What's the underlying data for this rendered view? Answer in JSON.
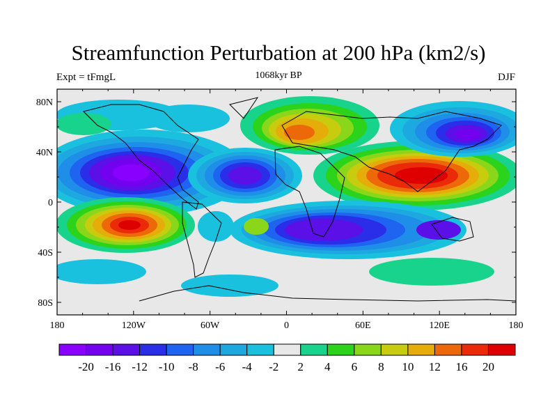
{
  "title": "Streamfunction Perturbation at 200 hPa (km2/s)",
  "left_label": "Expt = tFmgL",
  "center_label": "1068kyr BP",
  "right_label": "DJF",
  "lon_ticks": [
    "180",
    "120W",
    "60W",
    "0",
    "60E",
    "120E",
    "180"
  ],
  "lat_ticks": [
    "80N",
    "40N",
    "0",
    "40S",
    "80S"
  ],
  "colorbar": {
    "labels": [
      "-20",
      "-16",
      "-12",
      "-10",
      "-8",
      "-6",
      "-4",
      "-2",
      "2",
      "4",
      "6",
      "8",
      "10",
      "12",
      "16",
      "20"
    ],
    "colors": [
      "#8a00ff",
      "#7400f0",
      "#5a10e6",
      "#2a2ee8",
      "#1e64f0",
      "#1e8ee8",
      "#1ea8e0",
      "#19c1de",
      "#e8e8e8",
      "#17d38b",
      "#2bd31a",
      "#8ad61a",
      "#c8cc0e",
      "#e6ad0a",
      "#ec6808",
      "#ea2a08",
      "#de0000"
    ]
  },
  "map_data": {
    "type": "filled-contour-map",
    "lon_range": [
      -180,
      180
    ],
    "lat_range": [
      -90,
      90
    ],
    "land_color": "#e8e8e8"
  }
}
